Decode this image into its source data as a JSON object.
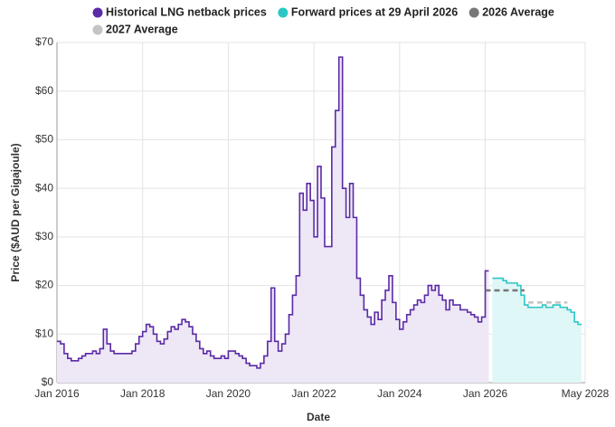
{
  "chart_data": {
    "type": "line",
    "step": true,
    "x_label": "Date",
    "y_label": "Price ($AUD per Gigajoule)",
    "xlim": [
      "2016-01",
      "2028-05"
    ],
    "xticks": [
      {
        "value": "2016-01",
        "label": "Jan 2016"
      },
      {
        "value": "2018-01",
        "label": "Jan 2018"
      },
      {
        "value": "2020-01",
        "label": "Jan 2020"
      },
      {
        "value": "2022-01",
        "label": "Jan 2022"
      },
      {
        "value": "2024-01",
        "label": "Jan 2024"
      },
      {
        "value": "2026-01",
        "label": "Jan 2026"
      },
      {
        "value": "2028-05",
        "label": "May 2028"
      }
    ],
    "ylim": [
      0,
      70
    ],
    "yticks": [
      {
        "value": 0,
        "label": "$0"
      },
      {
        "value": 10,
        "label": "$10"
      },
      {
        "value": 20,
        "label": "$20"
      },
      {
        "value": 30,
        "label": "$30"
      },
      {
        "value": 40,
        "label": "$40"
      },
      {
        "value": 50,
        "label": "$50"
      },
      {
        "value": 60,
        "label": "$60"
      },
      {
        "value": 70,
        "label": "$70"
      }
    ],
    "grid": true,
    "series": [
      {
        "name": "Historical LNG netback prices",
        "color": "#5b2aa6",
        "fill": "#ede7f6",
        "start": "2016-01",
        "values": [
          8.5,
          8,
          6,
          5,
          4.5,
          4.5,
          5,
          5.5,
          6,
          6,
          6.5,
          6,
          7,
          11,
          8,
          6.5,
          6,
          6,
          6,
          6,
          6,
          6.5,
          8,
          9.5,
          10.5,
          12,
          11.5,
          10,
          8.5,
          8,
          9,
          10.5,
          11.5,
          11,
          12,
          13,
          12.5,
          11.5,
          10,
          8.5,
          7,
          6,
          6.5,
          5.5,
          5,
          5,
          5.5,
          5,
          6.5,
          6.5,
          6,
          5.5,
          5,
          4,
          3.5,
          3.5,
          3,
          4,
          5.5,
          8.5,
          19.5,
          8.5,
          6.5,
          8,
          10,
          14,
          18,
          22,
          39,
          35.5,
          41,
          37.5,
          30,
          44.5,
          38,
          28,
          28,
          48.5,
          56,
          67,
          40,
          34,
          41,
          34,
          21.5,
          18,
          15,
          13.5,
          12,
          14.5,
          13,
          17,
          19,
          22,
          16.5,
          13,
          11,
          12.5,
          14,
          15,
          16,
          17,
          16.5,
          18,
          20,
          19,
          20,
          18,
          17,
          15,
          17,
          16,
          16,
          15,
          15,
          14.5,
          14,
          13.5,
          12.5,
          13.5,
          23
        ]
      },
      {
        "name": "Forward prices at 29 April 2026",
        "color": "#2cc6c6",
        "fill": "#e0f7f7",
        "start": "2026-03",
        "values": [
          21.5,
          21.5,
          21.5,
          21,
          20.5,
          20.5,
          20.5,
          20,
          18,
          16,
          15.5,
          15.5,
          15.5,
          15.5,
          16,
          15.5,
          15.5,
          16,
          16,
          15.5,
          15.5,
          15,
          14.5,
          12.5,
          12
        ]
      },
      {
        "name": "2026 Average",
        "color": "#777777",
        "dashed": true,
        "x": [
          "2026-01",
          "2026-12"
        ],
        "values": [
          19,
          19
        ]
      },
      {
        "name": "2027 Average",
        "color": "#c4c4c4",
        "dashed": true,
        "x": [
          "2027-01",
          "2027-12"
        ],
        "values": [
          16.5,
          16.5
        ]
      }
    ]
  }
}
